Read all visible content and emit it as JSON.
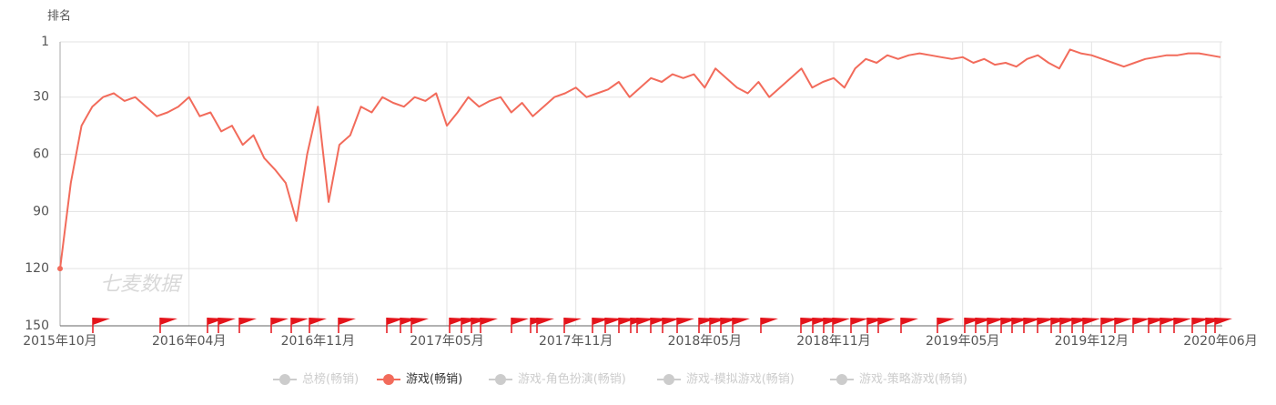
{
  "chart_data": {
    "type": "line",
    "y_label": "排名",
    "watermark": "七麦数据",
    "categories": [
      "2015年10月",
      null,
      null,
      null,
      null,
      null,
      null,
      null,
      null,
      null,
      null,
      null,
      "2016年04月",
      null,
      null,
      null,
      null,
      null,
      null,
      null,
      null,
      null,
      null,
      null,
      "2016年11月",
      null,
      null,
      null,
      null,
      null,
      null,
      null,
      null,
      null,
      null,
      null,
      "2017年05月",
      null,
      null,
      null,
      null,
      null,
      null,
      null,
      null,
      null,
      null,
      null,
      "2017年11月",
      null,
      null,
      null,
      null,
      null,
      null,
      null,
      null,
      null,
      null,
      null,
      "2018年05月",
      null,
      null,
      null,
      null,
      null,
      null,
      null,
      null,
      null,
      null,
      null,
      "2018年11月",
      null,
      null,
      null,
      null,
      null,
      null,
      null,
      null,
      null,
      null,
      null,
      "2019年05月",
      null,
      null,
      null,
      null,
      null,
      null,
      null,
      null,
      null,
      null,
      null,
      "2019年12月",
      null,
      null,
      null,
      null,
      null,
      null,
      null,
      null,
      null,
      null,
      null,
      "2020年06月"
    ],
    "series": [
      {
        "name": "总榜(畅销)",
        "color": "#cccccc",
        "visible": false
      },
      {
        "name": "游戏(畅销)",
        "color": "#f26b5b",
        "visible": true,
        "values": [
          120,
          75,
          45,
          35,
          30,
          28,
          32,
          30,
          35,
          40,
          38,
          35,
          30,
          40,
          38,
          48,
          45,
          55,
          50,
          62,
          68,
          75,
          95,
          60,
          35,
          85,
          55,
          50,
          35,
          38,
          30,
          33,
          35,
          30,
          32,
          28,
          45,
          38,
          30,
          35,
          32,
          30,
          38,
          33,
          40,
          35,
          30,
          28,
          25,
          30,
          28,
          26,
          22,
          30,
          25,
          20,
          22,
          18,
          20,
          18,
          25,
          15,
          20,
          25,
          28,
          22,
          30,
          25,
          20,
          15,
          25,
          22,
          20,
          25,
          15,
          10,
          12,
          8,
          10,
          8,
          7,
          8,
          9,
          10,
          9,
          12,
          10,
          13,
          12,
          14,
          10,
          8,
          12,
          15,
          5,
          7,
          8,
          10,
          12,
          14,
          12,
          10,
          9,
          8,
          8,
          7,
          7,
          8,
          9
        ]
      },
      {
        "name": "游戏-角色扮演(畅销)",
        "color": "#cccccc",
        "visible": false
      },
      {
        "name": "游戏-模拟游戏(畅销)",
        "color": "#cccccc",
        "visible": false
      },
      {
        "name": "游戏-策略游戏(畅销)",
        "color": "#cccccc",
        "visible": false
      }
    ],
    "ylim": [
      150,
      1
    ],
    "yticks": [
      1,
      30,
      60,
      90,
      120,
      150
    ],
    "grid": true
  }
}
